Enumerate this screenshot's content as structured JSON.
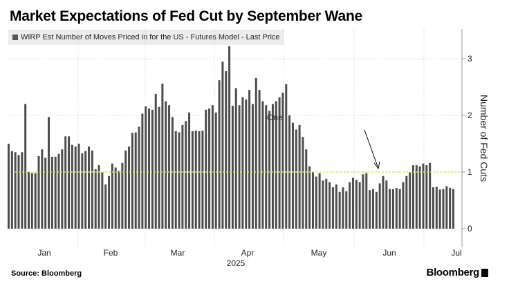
{
  "title": "Market Expectations of Fed Cut by September Wane",
  "legend": {
    "label": "WIRP Est Number of Moves Priced in for the US - Futures Model - Last Price",
    "swatch_color": "#555555"
  },
  "source": "Source: Bloomberg",
  "brand": "Bloomberg",
  "chart_data": {
    "type": "bar",
    "title": "Market Expectations of Fed Cut by September Wane",
    "ylabel": "Number of Fed Cuts",
    "xlabel": "2025",
    "ylim": [
      -0.16,
      3.55
    ],
    "yticks": [
      0,
      1,
      2,
      3
    ],
    "xticks": [
      "Jan",
      "Feb",
      "Mar",
      "Apr",
      "May",
      "Jun",
      "Jul"
    ],
    "year_label": "2025",
    "reference_line": {
      "value": 1,
      "color": "#e8e84a"
    },
    "annotation": {
      "text": "One",
      "target_value": 1
    },
    "bar_color": "#4d4d4d",
    "series": [
      {
        "name": "WIRP Est Number of Moves Priced in for the US - Futures Model - Last Price",
        "values": [
          1.5,
          1.37,
          1.35,
          1.3,
          1.35,
          2.2,
          1.0,
          0.98,
          0.98,
          1.28,
          1.4,
          1.25,
          1.97,
          1.27,
          1.27,
          1.32,
          1.4,
          1.63,
          1.63,
          1.48,
          1.45,
          1.5,
          1.33,
          1.37,
          1.45,
          1.38,
          1.05,
          1.12,
          1.0,
          0.78,
          0.93,
          1.15,
          1.08,
          1.02,
          1.16,
          1.38,
          1.45,
          1.69,
          1.7,
          1.8,
          2.03,
          2.16,
          2.12,
          2.1,
          2.38,
          2.15,
          2.56,
          2.25,
          2.18,
          1.97,
          1.72,
          1.7,
          1.83,
          1.9,
          2.05,
          1.72,
          1.73,
          1.72,
          1.73,
          2.1,
          2.12,
          2.18,
          2.05,
          2.62,
          2.95,
          2.78,
          3.22,
          2.17,
          2.48,
          2.18,
          2.32,
          2.28,
          2.45,
          2.2,
          2.66,
          2.45,
          2.25,
          2.18,
          2.08,
          2.2,
          2.25,
          2.32,
          2.4,
          2.55,
          2.0,
          1.87,
          1.75,
          1.83,
          1.62,
          1.4,
          1.1,
          1.0,
          0.92,
          0.98,
          0.85,
          0.88,
          0.82,
          0.73,
          0.78,
          0.65,
          0.73,
          0.66,
          0.82,
          0.9,
          0.86,
          0.82,
          0.96,
          0.98,
          0.68,
          0.7,
          0.65,
          0.8,
          0.93,
          0.85,
          0.7,
          0.7,
          0.72,
          0.7,
          0.82,
          0.93,
          1.0,
          1.12,
          1.12,
          1.1,
          1.15,
          1.12,
          1.16,
          0.73,
          0.74,
          0.69,
          0.7,
          0.75,
          0.72,
          0.7
        ]
      }
    ]
  }
}
